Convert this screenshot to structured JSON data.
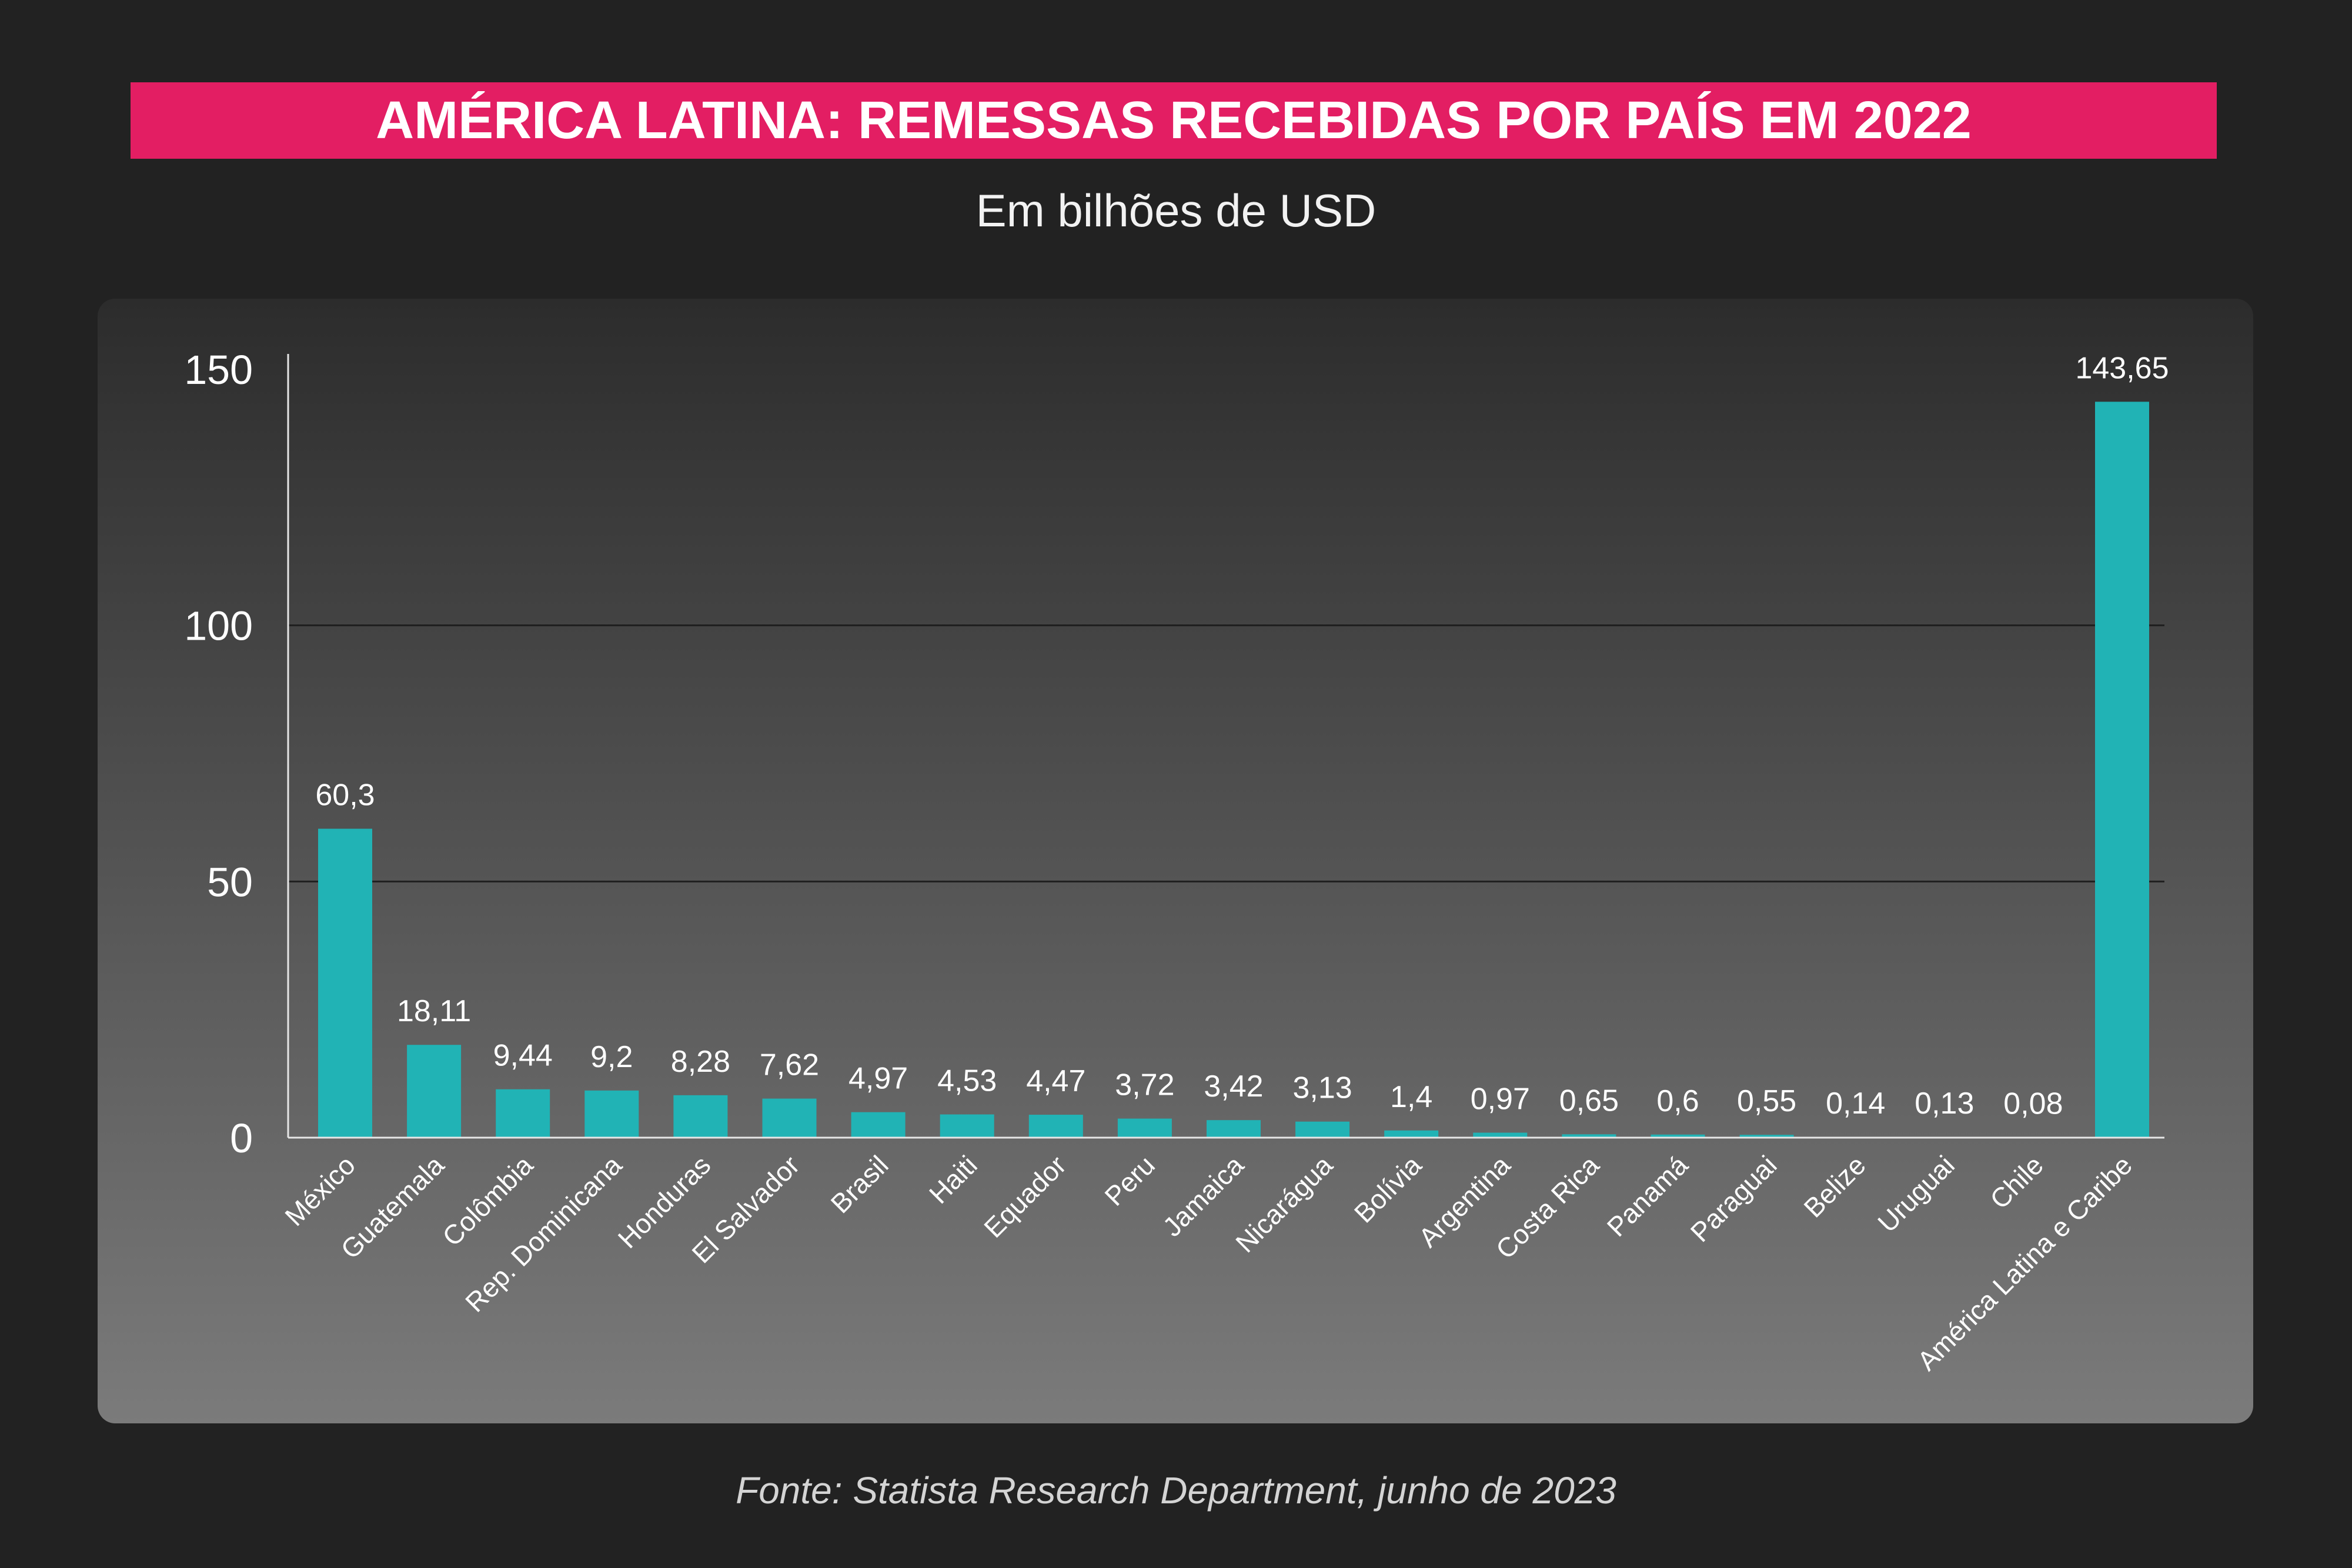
{
  "source": "Fonte: Statista Research Department, junho de 2023",
  "colors": {
    "background": "#222222",
    "banner": "#e31e63",
    "bar": "#21b3b5",
    "text": "#ffffff",
    "axis": "#e6e6e6",
    "grid": "#1f1f1f",
    "panel_top": "#2c2c2c",
    "panel_bottom": "#7b7b7b"
  },
  "chart_data": {
    "type": "bar",
    "title": "AMÉRICA LATINA: REMESSAS RECEBIDAS POR PAÍS EM 2022",
    "subtitle": "Em bilhões de USD",
    "xlabel": "",
    "ylabel": "",
    "ylim": [
      0,
      150
    ],
    "yticks": [
      0,
      50,
      100,
      150
    ],
    "ytick_labels": [
      "0",
      "50",
      "100",
      "150"
    ],
    "grid": true,
    "legend": "none",
    "categories": [
      "México",
      "Guatemala",
      "Colômbia",
      "Rep. Dominicana",
      "Honduras",
      "El Salvador",
      "Brasil",
      "Haiti",
      "Equador",
      "Peru",
      "Jamaica",
      "Nicarágua",
      "Bolívia",
      "Argentina",
      "Costa Rica",
      "Panamá",
      "Paraguai",
      "Belize",
      "Uruguai",
      "Chile",
      "América Latina e Caribe"
    ],
    "values": [
      60.3,
      18.11,
      9.44,
      9.2,
      8.28,
      7.62,
      4.97,
      4.53,
      4.47,
      3.72,
      3.42,
      3.13,
      1.4,
      0.97,
      0.65,
      0.6,
      0.55,
      0.14,
      0.13,
      0.08,
      143.65
    ],
    "value_labels": [
      "60,3",
      "18,11",
      "9,44",
      "9,2",
      "8,28",
      "7,62",
      "4,97",
      "4,53",
      "4,47",
      "3,72",
      "3,42",
      "3,13",
      "1,4",
      "0,97",
      "0,65",
      "0,6",
      "0,55",
      "0,14",
      "0,13",
      "0,08",
      "143,65"
    ]
  }
}
